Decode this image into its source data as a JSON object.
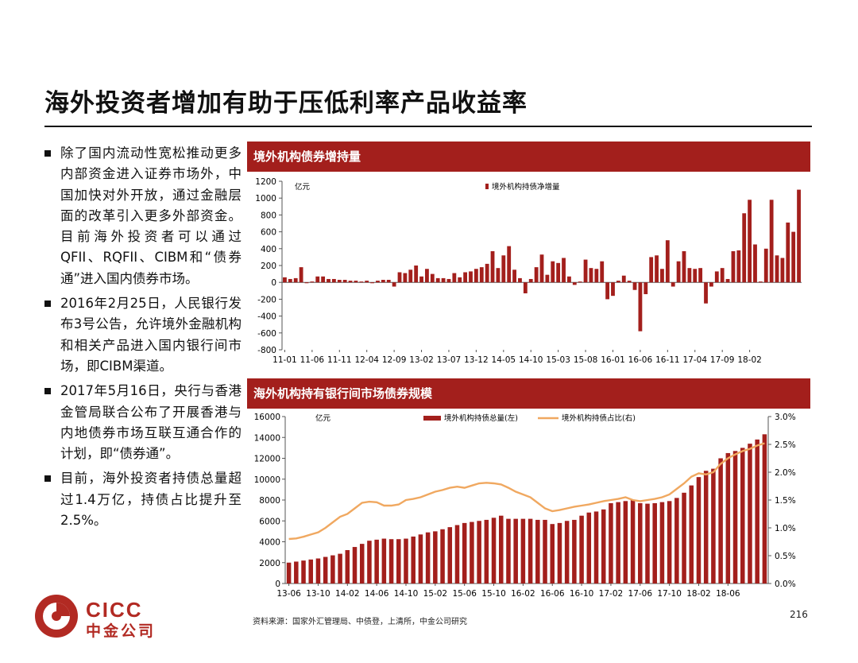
{
  "page": {
    "title": "海外投资者增加有助于压低利率产品收益率",
    "source": "资料来源：国家外汇管理局、中债登，上清所，中金公司研究",
    "page_number": "216",
    "logo": {
      "en": "CICC",
      "cn": "中金公司"
    }
  },
  "bullets": [
    "除了国内流动性宽松推动更多内部资金进入证券市场外，中国加快对外开放，通过金融层面的改革引入更多外部资金。目前海外投资者可以通过QFII、RQFII、CIBM和“债券通”进入国内债券市场。",
    "2016年2月25日，人民银行发布3号公告，允许境外金融机构和相关产品进入国内银行间市场，即CIBM渠道。",
    "2017年5月16日，央行与香港金管局联合公布了开展香港与内地债券市场互联互通合作的计划，即“债券通”。",
    "目前，海外投资者持债总量超过1.4万亿，持债占比提升至2.5%。"
  ],
  "colors": {
    "bar": "#a31f1c",
    "line": "#f0a860",
    "header": "#a31f1c"
  },
  "chart_data": [
    {
      "type": "bar",
      "panel_title": "境外机构债券增持量",
      "unit_label": "亿元",
      "legend": "境外机构持债净增量",
      "ylim": [
        -800,
        1200
      ],
      "yticks": [
        -800,
        -600,
        -400,
        -200,
        0,
        200,
        400,
        600,
        800,
        1000,
        1200
      ],
      "xtick_labels": [
        "11-01",
        "11-06",
        "11-11",
        "12-04",
        "12-09",
        "13-02",
        "13-07",
        "13-12",
        "14-05",
        "14-10",
        "15-03",
        "15-08",
        "16-01",
        "16-06",
        "16-11",
        "17-04",
        "17-09",
        "18-02"
      ],
      "xtick_step": 5,
      "start": "11-01",
      "values": [
        60,
        40,
        50,
        180,
        -10,
        10,
        70,
        70,
        40,
        40,
        30,
        30,
        20,
        20,
        10,
        20,
        -10,
        20,
        30,
        30,
        -50,
        120,
        110,
        150,
        200,
        70,
        160,
        100,
        50,
        50,
        40,
        110,
        60,
        120,
        130,
        160,
        180,
        220,
        370,
        170,
        320,
        430,
        150,
        50,
        -130,
        40,
        180,
        330,
        90,
        250,
        230,
        290,
        70,
        -30,
        10,
        270,
        170,
        160,
        250,
        -200,
        -160,
        20,
        80,
        20,
        -90,
        -580,
        -140,
        300,
        320,
        160,
        500,
        -50,
        250,
        370,
        170,
        160,
        170,
        -250,
        -50,
        130,
        170,
        40,
        370,
        380,
        820,
        980,
        450,
        10,
        400,
        980,
        320,
        290,
        710,
        600,
        1100
      ]
    },
    {
      "type": "bar+line",
      "panel_title": "海外机构持有银行间市场债券规模",
      "unit_label": "亿元",
      "legend": [
        "境外机构持债总量(左)",
        "境外机构持债占比(右)"
      ],
      "ylim": [
        0,
        16000
      ],
      "yticks": [
        0,
        2000,
        4000,
        6000,
        8000,
        10000,
        12000,
        14000,
        16000
      ],
      "y2lim": [
        0,
        3.0
      ],
      "y2ticks": [
        "0.0%",
        "0.5%",
        "1.0%",
        "1.5%",
        "2.0%",
        "2.5%",
        "3.0%"
      ],
      "xtick_labels": [
        "13-06",
        "13-10",
        "14-02",
        "14-06",
        "14-10",
        "15-02",
        "15-06",
        "15-10",
        "16-02",
        "16-06",
        "16-10",
        "17-02",
        "17-06",
        "17-10",
        "18-02",
        "18-06"
      ],
      "xtick_step": 4,
      "start": "13-06",
      "totals": [
        2000,
        2100,
        2200,
        2300,
        2400,
        2550,
        2700,
        2850,
        3200,
        3500,
        3800,
        4100,
        4200,
        4300,
        4250,
        4250,
        4300,
        4500,
        4700,
        4900,
        5000,
        5200,
        5400,
        5600,
        5800,
        5900,
        6000,
        6100,
        6300,
        6500,
        6200,
        6200,
        6200,
        6200,
        6100,
        6100,
        5700,
        5800,
        6000,
        6100,
        6500,
        6800,
        6900,
        7100,
        7700,
        7800,
        7900,
        8000,
        7700,
        7650,
        7700,
        7800,
        7900,
        8200,
        8700,
        9400,
        10200,
        10800,
        11000,
        12000,
        12500,
        12700,
        13000,
        13400,
        13800,
        14300
      ],
      "shares": [
        0.8,
        0.81,
        0.84,
        0.88,
        0.92,
        1.0,
        1.1,
        1.2,
        1.25,
        1.35,
        1.45,
        1.47,
        1.46,
        1.4,
        1.4,
        1.42,
        1.5,
        1.52,
        1.55,
        1.6,
        1.65,
        1.68,
        1.72,
        1.74,
        1.72,
        1.76,
        1.8,
        1.81,
        1.8,
        1.78,
        1.72,
        1.65,
        1.6,
        1.55,
        1.45,
        1.35,
        1.3,
        1.32,
        1.35,
        1.38,
        1.4,
        1.42,
        1.45,
        1.48,
        1.5,
        1.52,
        1.55,
        1.5,
        1.48,
        1.5,
        1.52,
        1.55,
        1.6,
        1.7,
        1.8,
        1.92,
        1.98,
        1.96,
        2.0,
        2.15,
        2.25,
        2.32,
        2.38,
        2.42,
        2.48,
        2.52
      ]
    }
  ]
}
